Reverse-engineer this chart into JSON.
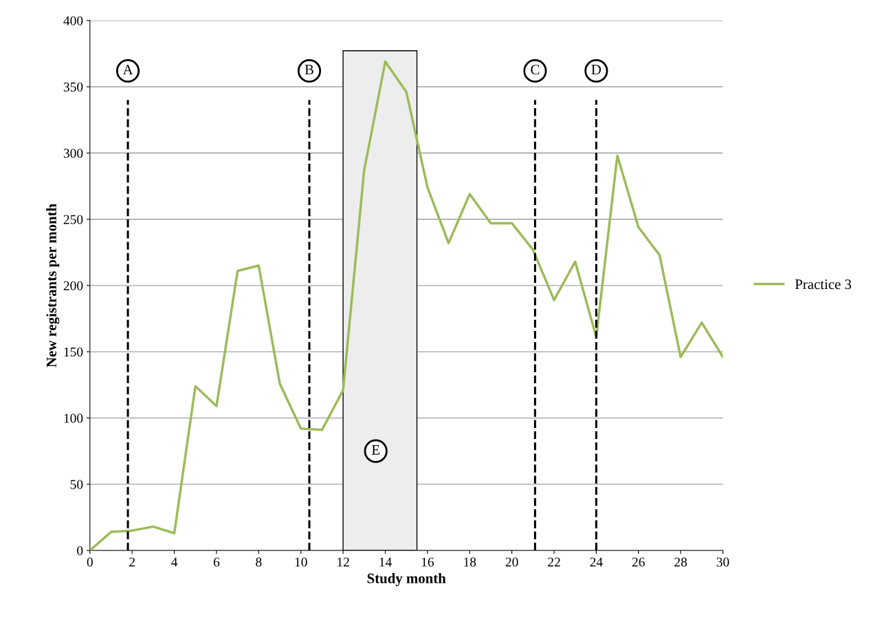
{
  "chart_data": {
    "type": "line",
    "xlabel": "Study month",
    "ylabel": "New registrants per month",
    "x": [
      0,
      1,
      2,
      3,
      4,
      5,
      6,
      7,
      8,
      9,
      10,
      11,
      12,
      13,
      14,
      15,
      16,
      17,
      18,
      19,
      20,
      21,
      22,
      23,
      24,
      25,
      26,
      27,
      28,
      29,
      30
    ],
    "series": [
      {
        "name": "Practice 3",
        "color": "#9bbb59",
        "values": [
          0,
          14,
          15,
          18,
          13,
          124,
          109,
          211,
          215,
          126,
          92,
          91,
          121,
          287,
          369,
          346,
          274,
          232,
          269,
          247,
          247,
          227,
          189,
          218,
          161,
          298,
          244,
          223,
          146,
          172,
          146
        ]
      }
    ],
    "xlim": [
      0,
      30
    ],
    "xticks": [
      0,
      2,
      4,
      6,
      8,
      10,
      12,
      14,
      16,
      18,
      20,
      22,
      24,
      26,
      28,
      30
    ],
    "ylim": [
      0,
      400
    ],
    "yticks": [
      0,
      50,
      100,
      150,
      200,
      250,
      300,
      350,
      400
    ],
    "ref_lines": [
      {
        "axis": "x",
        "value": 1.8,
        "label": "A",
        "color": "#000000",
        "line_style": "dashed"
      },
      {
        "axis": "x",
        "value": 10.4,
        "label": "B",
        "color": "#000000",
        "line_style": "dashed"
      },
      {
        "axis": "x",
        "value": 21.1,
        "label": "C",
        "color": "#000000",
        "line_style": "dashed"
      },
      {
        "axis": "x",
        "value": 24.0,
        "label": "D",
        "color": "#000000",
        "line_style": "dashed"
      }
    ],
    "bands": [
      {
        "axis": "x",
        "from": 12,
        "to": 15.5,
        "label": "E",
        "color": "#ededed"
      }
    ],
    "grid": "y",
    "legend": "right",
    "marker": "none",
    "line_style": "solid"
  }
}
